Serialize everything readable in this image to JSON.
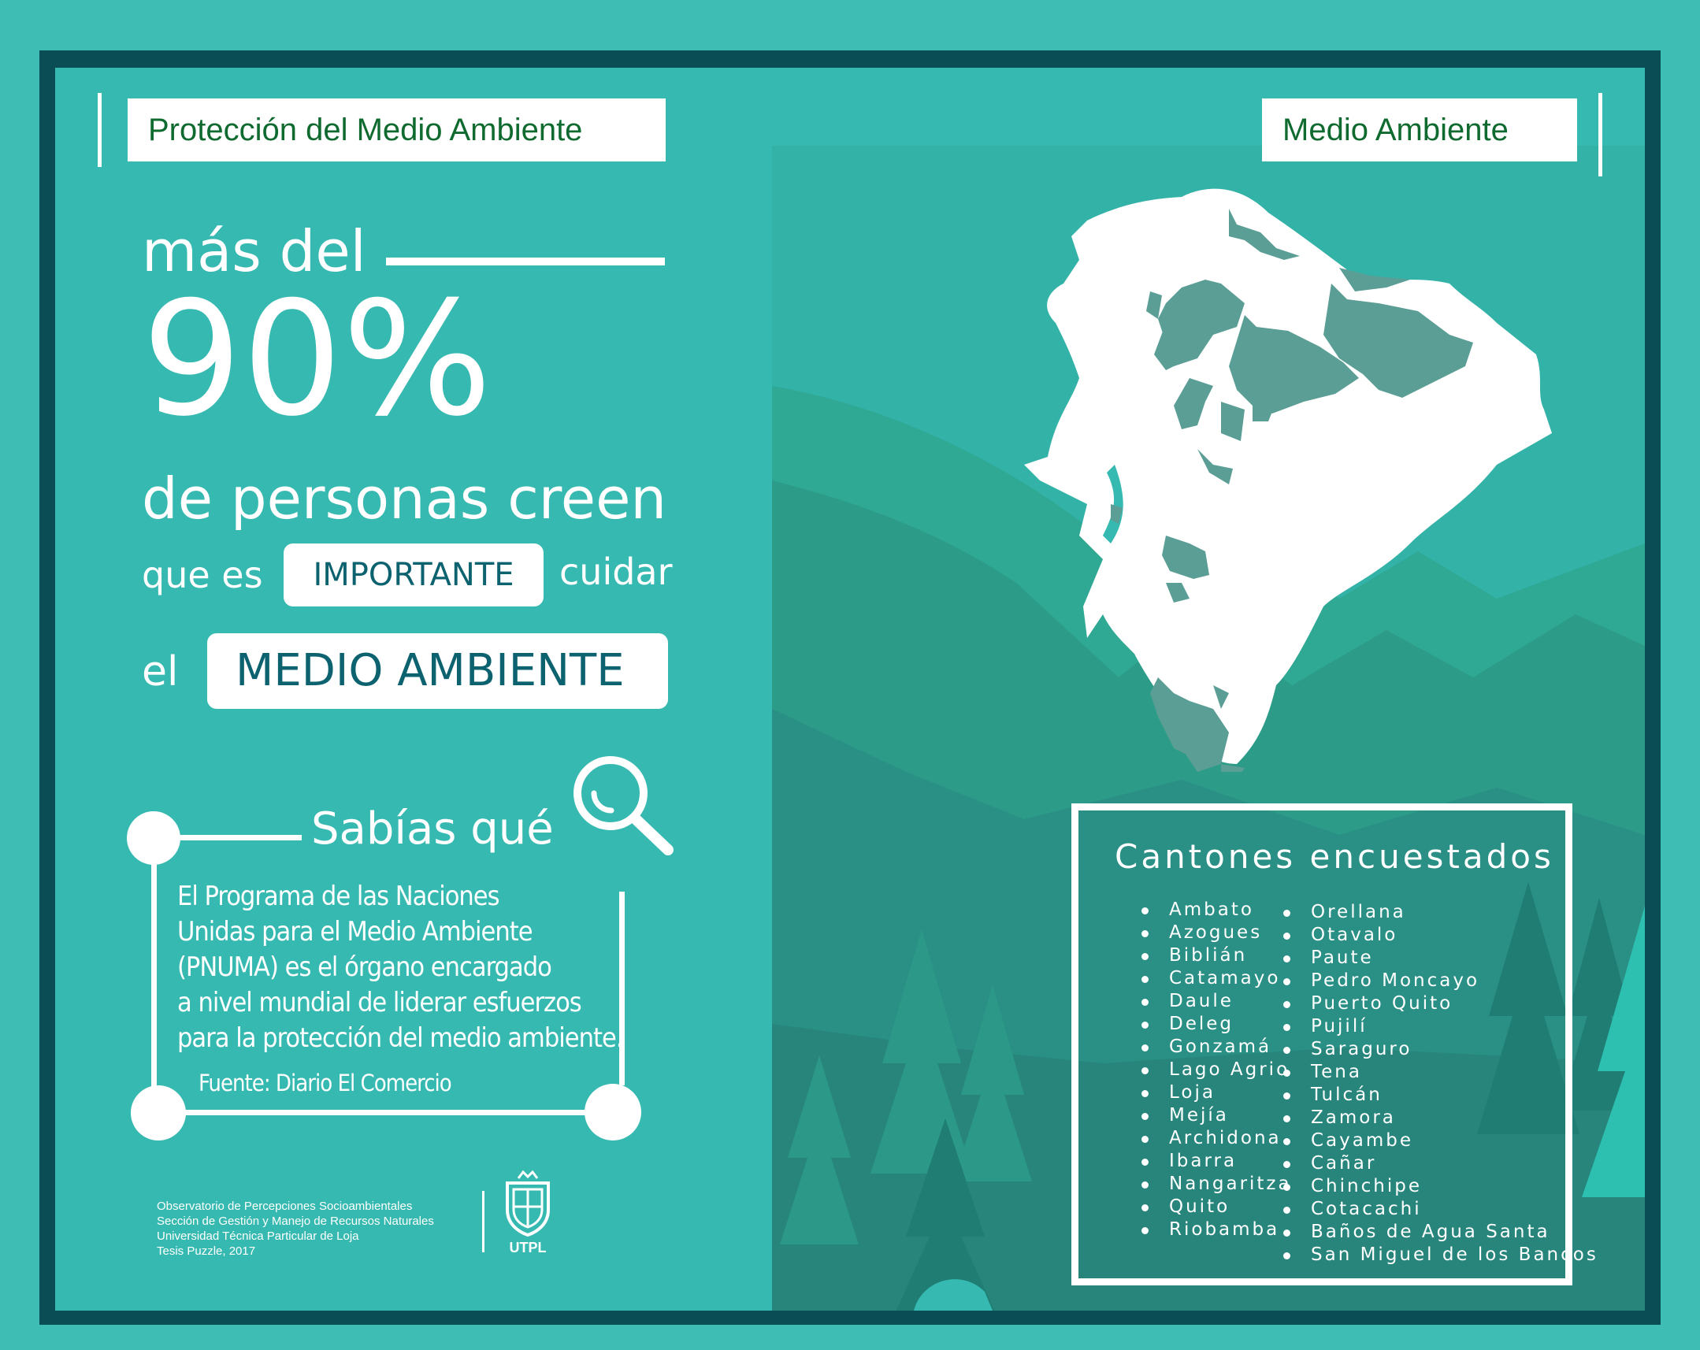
{
  "header": {
    "left_tag": "Protección del Medio Ambiente",
    "right_tag": "Medio Ambiente"
  },
  "stat": {
    "intro": "más del",
    "percent": "90%",
    "line1": "de personas creen",
    "line2_pre": "que es",
    "line2_box": "IMPORTANTE",
    "line2_post": "cuidar",
    "line3_pre": "el",
    "line3_box": "MEDIO AMBIENTE"
  },
  "fact": {
    "title": "Sabías qué",
    "lines": [
      "El Programa de las Naciones",
      "Unidas para el Medio Ambiente",
      "(PNUMA) es el órgano encargado",
      "a nivel mundial de liderar esfuerzos",
      "para la protección del medio ambiente."
    ],
    "source": "Fuente: Diario El Comercio"
  },
  "footer": {
    "lines": [
      "Observatorio de Percepciones Socioambientales",
      "Sección de Gestión y Manejo de Recursos Naturales",
      "Universidad Técnica Particular de Loja",
      "Tesis Puzzle, 2017"
    ],
    "logo_text": "UTPL"
  },
  "cantons": {
    "title": "Cantones encuestados",
    "col1": [
      "Ambato",
      "Azogues",
      "Biblián",
      "Catamayo",
      "Daule",
      "Deleg",
      "Gonzamá",
      "Lago Agrio",
      "Loja",
      "Mejía",
      "Archidona",
      "Ibarra",
      "Nangaritza",
      "Quito",
      "Riobamba"
    ],
    "col2": [
      "Orellana",
      "Otavalo",
      "Paute",
      "Pedro Moncayo",
      "Puerto Quito",
      "Pujilí",
      "Saraguro",
      "Tena",
      "Tulcán",
      "Zamora",
      "Cayambe",
      "Cañar",
      "Chinchipe",
      "Cotacachi",
      "Baños de Agua Santa",
      "San Miguel de los Bancos"
    ]
  },
  "icons": {
    "search": "magnifier-icon",
    "map": "ecuador-map-icon",
    "logo": "utpl-crest-icon"
  },
  "colors": {
    "background": "#36b9b0",
    "frame": "#0b4d54",
    "tag_text": "#0f6a2f",
    "box_text": "#0d6270",
    "map_region": "#5a9e96"
  }
}
